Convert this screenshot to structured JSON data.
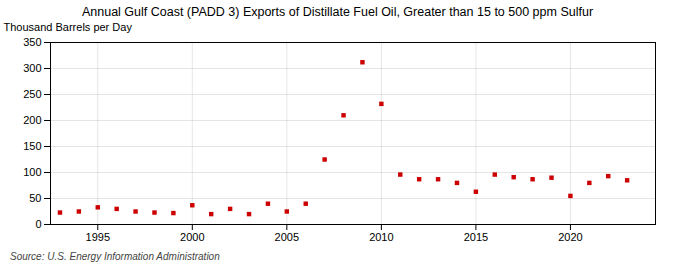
{
  "chart_data": {
    "type": "scatter",
    "title": "Annual Gulf Coast (PADD 3) Exports of Distillate Fuel Oil, Greater than 15 to 500 ppm Sulfur",
    "ylabel": "Thousand Barrels per Day",
    "annotations": [
      "Source: U.S. Energy Information Administration"
    ],
    "x": [
      1993,
      1994,
      1995,
      1996,
      1997,
      1998,
      1999,
      2000,
      2001,
      2002,
      2003,
      2004,
      2005,
      2006,
      2007,
      2008,
      2009,
      2010,
      2011,
      2012,
      2013,
      2014,
      2015,
      2016,
      2017,
      2018,
      2019,
      2020,
      2021,
      2022,
      2023
    ],
    "values": [
      23,
      25,
      33,
      30,
      25,
      23,
      22,
      37,
      20,
      30,
      20,
      40,
      25,
      40,
      125,
      210,
      312,
      232,
      96,
      87,
      87,
      80,
      63,
      96,
      91,
      87,
      90,
      55,
      80,
      93,
      85
    ],
    "color": "#cc0000",
    "marker": "square",
    "xlim": [
      1992.5,
      2024.5
    ],
    "xticks": [
      1995,
      2000,
      2005,
      2010,
      2015,
      2020
    ],
    "ylim": [
      0,
      350
    ],
    "yticks": [
      0,
      50,
      100,
      150,
      200,
      250,
      300,
      350
    ],
    "grid": true
  }
}
